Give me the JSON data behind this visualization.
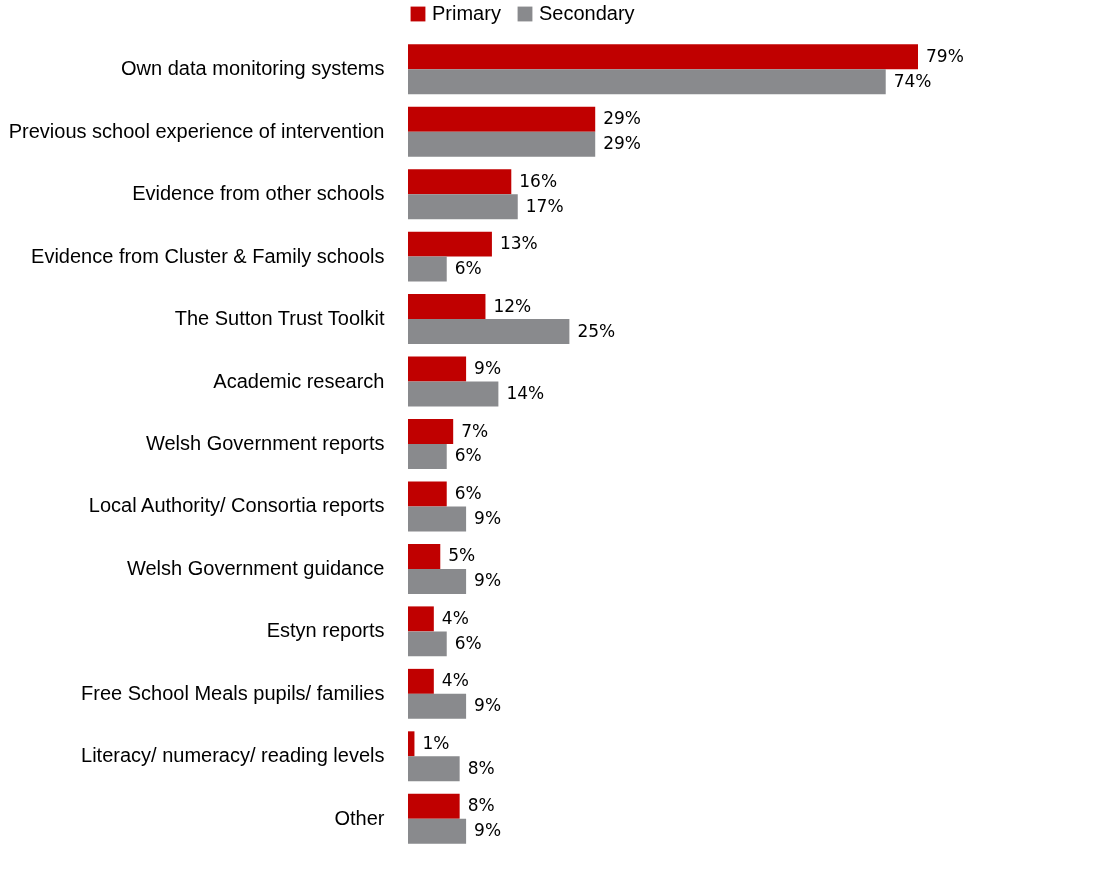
{
  "chart_data": {
    "type": "bar",
    "orientation": "horizontal",
    "legend": "top",
    "categories": [
      "Own data monitoring systems",
      "Previous school experience of intervention",
      "Evidence from other schools",
      "Evidence from Cluster & Family schools",
      "The Sutton Trust Toolkit",
      "Academic research",
      "Welsh Government reports",
      "Local Authority/ Consortia reports",
      "Welsh Government guidance",
      "Estyn reports",
      "Free School Meals pupils/ families",
      "Literacy/ numeracy/ reading levels",
      "Other"
    ],
    "series": [
      {
        "name": "Primary",
        "color": "#c00000",
        "values": [
          79,
          29,
          16,
          13,
          12,
          9,
          7,
          6,
          5,
          4,
          4,
          1,
          8
        ],
        "value_labels": [
          "79%",
          "29%",
          "16%",
          "13%",
          "12%",
          "9%",
          "7%",
          "6%",
          "5%",
          "4%",
          "4%",
          "1%",
          "8%"
        ]
      },
      {
        "name": "Secondary",
        "color": "#898a8d",
        "values": [
          74,
          29,
          17,
          6,
          25,
          14,
          6,
          9,
          9,
          6,
          9,
          8,
          9
        ],
        "value_labels": [
          "74%",
          "29%",
          "17%",
          "6%",
          "25%",
          "14%",
          "6%",
          "9%",
          "9%",
          "6%",
          "9%",
          "8%",
          "9%"
        ]
      }
    ]
  }
}
